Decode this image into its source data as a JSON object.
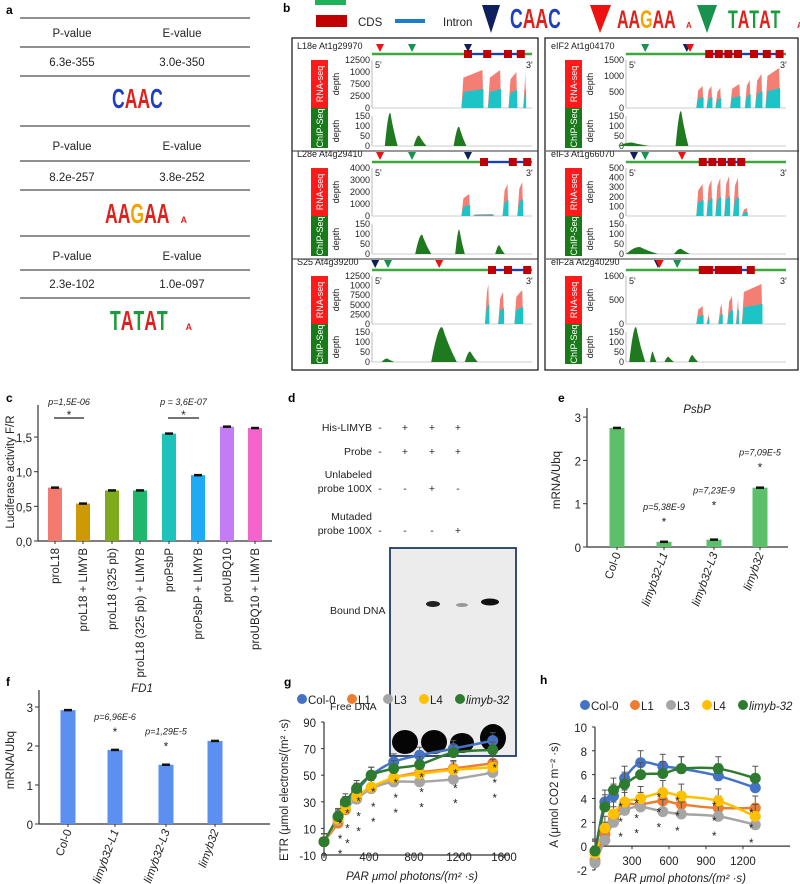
{
  "panel_labels": {
    "a": "a",
    "b": "b",
    "c": "c",
    "d": "d",
    "e": "e",
    "f": "f",
    "g": "g",
    "h": "h"
  },
  "panel_a": {
    "header": {
      "p": "P-value",
      "e": "E-value"
    },
    "motifs": [
      {
        "p": "6.3e-355",
        "e": "3.0e-350",
        "logo": "CAAC"
      },
      {
        "p": "8.2e-257",
        "e": "3.8e-252",
        "logo": "AAGAA"
      },
      {
        "p": "2.3e-102",
        "e": "1.0e-097",
        "logo": "TATAT"
      }
    ]
  },
  "panel_b": {
    "legend": {
      "cds": "CDS",
      "intron": "Intron"
    },
    "rna_label": "RNA-seq",
    "chip_label": "ChIP-Seq",
    "depth": "depth",
    "five": "5'",
    "three": "3'",
    "genes": [
      {
        "name": "L18e At1g29970",
        "rna_ticks": [
          "12500",
          "1000",
          "7500",
          "2500",
          "0"
        ],
        "chip_ticks": [
          "150",
          "100",
          "50",
          "0"
        ]
      },
      {
        "name": "L28e At4g29410",
        "rna_ticks": [
          "4000",
          "3000",
          "2000",
          "1000",
          "0"
        ],
        "chip_ticks": [
          "150",
          "100",
          "50",
          "0"
        ]
      },
      {
        "name": "S25 At4g39200",
        "rna_ticks": [
          "12500",
          "1000",
          "7500",
          "5000",
          "2500",
          "0"
        ],
        "chip_ticks": [
          "150",
          "100",
          "50",
          "0"
        ]
      },
      {
        "name": "eIF2 At1g04170",
        "rna_ticks": [
          "1500",
          "1000",
          "500",
          "0"
        ],
        "chip_ticks": [
          "150",
          "100",
          "50",
          "0"
        ]
      },
      {
        "name": "eIF3 At1g66070",
        "rna_ticks": [
          "500",
          "400",
          "300",
          "200",
          "100",
          "0"
        ],
        "chip_ticks": [
          "150",
          "100",
          "50",
          "0"
        ]
      },
      {
        "name": "eIF2a At2g40290",
        "rna_ticks": [
          "1600",
          "500",
          "0"
        ],
        "chip_ticks": [
          "150",
          "100",
          "50",
          "0"
        ]
      }
    ]
  },
  "panel_d": {
    "rows": [
      {
        "label": "His-LIMYB",
        "signs": [
          "-",
          "+",
          "+",
          "+"
        ]
      },
      {
        "label": "Probe",
        "signs": [
          "-",
          "+",
          "+",
          "+"
        ]
      },
      {
        "label": "Unlabeled probe 100X",
        "signs": [
          "-",
          "-",
          "+",
          "-"
        ]
      },
      {
        "label": "Mutaded probe 100X",
        "signs": [
          "-",
          "-",
          "-",
          "+"
        ]
      }
    ],
    "bound": "Bound DNA",
    "free": "Free DNA"
  },
  "colors": {
    "col0": "#4472c4",
    "l1": "#ed7d31",
    "l3": "#a5a5a5",
    "l4": "#ffc000",
    "limyb": "#2e7a2e"
  },
  "chart_data": [
    {
      "id": "c",
      "type": "bar",
      "title": "",
      "ylabel": "Luciferase activity F/R",
      "xlabel": "",
      "categories": [
        "proL18",
        "proL18 + LIMYB",
        "proL18 (325 pb)",
        "proL18 (325 pb) + LIMYB",
        "proPsbP",
        "proPsbP + LIMYB",
        "proUBQ10",
        "proUBQ10 + LIMYB"
      ],
      "values": [
        0.77,
        0.54,
        0.73,
        0.73,
        1.55,
        0.95,
        1.65,
        1.63
      ],
      "colors": [
        "#f47a70",
        "#cc9a06",
        "#7dab1c",
        "#1db86c",
        "#1dc3bb",
        "#1faaf5",
        "#c47cf4",
        "#f564cc"
      ],
      "yticks": [
        "0,0",
        "0,5",
        "1,0",
        "1,5"
      ],
      "ylim": [
        0,
        1.9
      ],
      "annotations": [
        {
          "text": "p=1,5E-06",
          "star": "*",
          "between": [
            0,
            1
          ]
        },
        {
          "text": "p = 3,6E-07",
          "star": "*",
          "between": [
            4,
            5
          ]
        }
      ]
    },
    {
      "id": "e",
      "type": "bar",
      "title": "PsbP",
      "ylabel": "mRNA/Ubq",
      "xlabel": "",
      "categories": [
        "Col-0",
        "limyb32-L1",
        "limyb32-L3",
        "limyb32"
      ],
      "values": [
        2.75,
        0.12,
        0.17,
        1.37
      ],
      "color": "#5cbf6a",
      "yticks": [
        "0",
        "1",
        "2",
        "3"
      ],
      "ylim": [
        0,
        3.2
      ],
      "annotations": [
        null,
        {
          "text": "p=5,38E-9",
          "star": "*"
        },
        {
          "text": "p=7,23E-9",
          "star": "*"
        },
        {
          "text": "p=7,09E-5",
          "star": "*"
        }
      ]
    },
    {
      "id": "f",
      "type": "bar",
      "title": "FD1",
      "ylabel": "mRNA/Ubq",
      "xlabel": "",
      "categories": [
        "Col-0",
        "limyb32-L1",
        "limyb32-L3",
        "limyb32"
      ],
      "values": [
        2.92,
        1.9,
        1.52,
        2.13
      ],
      "color": "#5b8ff0",
      "yticks": [
        "0",
        "1",
        "2",
        "3"
      ],
      "ylim": [
        0,
        3.4
      ],
      "annotations": [
        null,
        {
          "text": "p=6,96E-6",
          "star": "*"
        },
        {
          "text": "p=1,29E-5",
          "star": "*"
        },
        null
      ]
    },
    {
      "id": "g",
      "type": "line",
      "ylabel": "ETR (μmol electrons/(m² ·s)",
      "xlabel": "PAR μmol photons/(m² ·s)",
      "xticks": [
        "0",
        "400",
        "800",
        "1200",
        "1600"
      ],
      "yticks": [
        "-10",
        "10",
        "30",
        "50",
        "70",
        "90"
      ],
      "xlim": [
        0,
        1600
      ],
      "ylim": [
        -10,
        90
      ],
      "star": "*",
      "x": [
        0,
        125,
        190,
        290,
        420,
        620,
        850,
        1150,
        1500
      ],
      "series": [
        {
          "name": "Col-0",
          "values": [
            0,
            18,
            28,
            38,
            50,
            60,
            65,
            70,
            76
          ]
        },
        {
          "name": "L1",
          "values": [
            0,
            14,
            24,
            33,
            40,
            48,
            52,
            55,
            59
          ]
        },
        {
          "name": "L3",
          "values": [
            0,
            16,
            25,
            32,
            40,
            45,
            45,
            47,
            52
          ]
        },
        {
          "name": "L4",
          "values": [
            0,
            17,
            25,
            34,
            41,
            48,
            51,
            54,
            56
          ]
        },
        {
          "name": "limyb-32",
          "values": [
            0,
            19,
            30,
            40,
            50,
            55,
            58,
            67,
            69
          ]
        }
      ]
    },
    {
      "id": "h",
      "type": "line",
      "ylabel": "A (μmol CO2 m⁻² ·s)",
      "xlabel": "PAR μmol photons/(m² ·s)",
      "xticks": [
        "0",
        "300",
        "600",
        "900",
        "1200"
      ],
      "yticks": [
        "-2",
        "0",
        "2",
        "4",
        "6",
        "8",
        "10"
      ],
      "xlim": [
        0,
        1200
      ],
      "ylim": [
        -2,
        10
      ],
      "star": "*",
      "x": [
        0,
        80,
        150,
        240,
        370,
        550,
        700,
        1000,
        1300
      ],
      "series": [
        {
          "name": "Col-0",
          "values": [
            -0.5,
            3.7,
            4.2,
            5.7,
            7.0,
            6.7,
            6.5,
            5.9,
            4.9
          ]
        },
        {
          "name": "L1",
          "values": [
            -1.2,
            1.0,
            2.3,
            3.5,
            3.5,
            3.8,
            3.5,
            3.2,
            3.2
          ]
        },
        {
          "name": "L3",
          "values": [
            -1.4,
            0.5,
            2.0,
            3.0,
            3.3,
            2.9,
            2.7,
            2.5,
            1.8
          ]
        },
        {
          "name": "L4",
          "values": [
            -0.6,
            1.5,
            2.7,
            3.7,
            4.0,
            4.5,
            4.2,
            3.8,
            2.5
          ]
        },
        {
          "name": "limyb-32",
          "values": [
            -0.4,
            3.3,
            4.7,
            5.2,
            6.0,
            6.1,
            6.5,
            6.5,
            5.7
          ]
        }
      ]
    }
  ]
}
